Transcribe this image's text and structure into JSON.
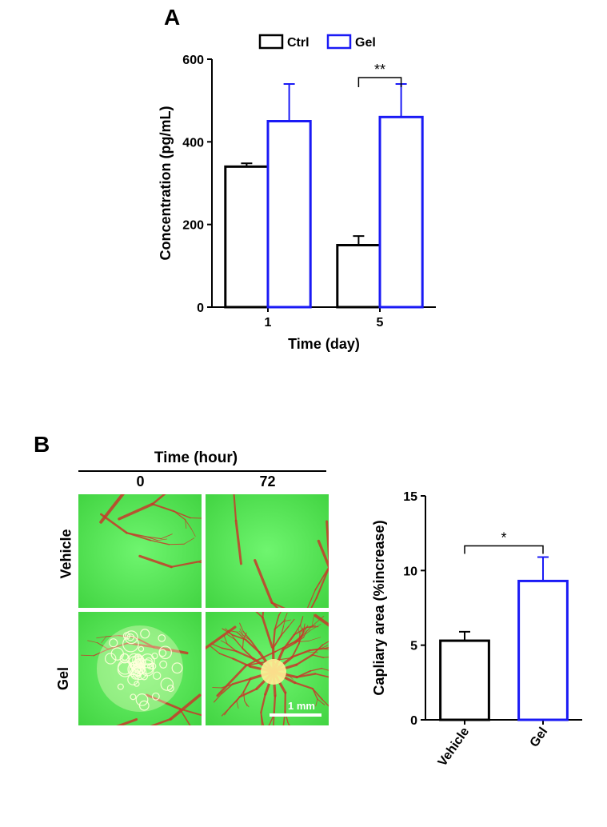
{
  "panelA": {
    "label": "A",
    "chart": {
      "type": "bar",
      "ylabel": "Concentration (pg/mL)",
      "xlabel": "Time (day)",
      "categories": [
        "1",
        "5"
      ],
      "series": [
        {
          "name": "Ctrl",
          "color": "#000000",
          "values": [
            340,
            150
          ],
          "errors": [
            8,
            22
          ]
        },
        {
          "name": "Gel",
          "color": "#1a1af5",
          "values": [
            450,
            460
          ],
          "errors": [
            90,
            80
          ]
        }
      ],
      "ylim": [
        0,
        600
      ],
      "ytick_step": 200,
      "bar_width_ratio": 0.38,
      "significance": {
        "group": 1,
        "label": "**"
      },
      "legend_font": 16,
      "axis_font": 18
    }
  },
  "panelB": {
    "label": "B",
    "time_header": "Time (hour)",
    "col_labels": [
      "0",
      "72"
    ],
    "row_labels": [
      "Vehicle",
      "Gel"
    ],
    "scale_bar_label": "1 mm",
    "image_bg": "#3fd23f",
    "vessel_color": "#c73a2a",
    "chart": {
      "type": "bar",
      "ylabel": "Capliary area (%increase)",
      "categories": [
        "Vehicle",
        "Gel"
      ],
      "series": [
        {
          "color": "#000000",
          "value": 5.3,
          "error": 0.6
        },
        {
          "color": "#1a1af5",
          "value": 9.3,
          "error": 1.6
        }
      ],
      "ylim": [
        0,
        15
      ],
      "ytick_step": 5,
      "significance": {
        "label": "*"
      }
    }
  }
}
